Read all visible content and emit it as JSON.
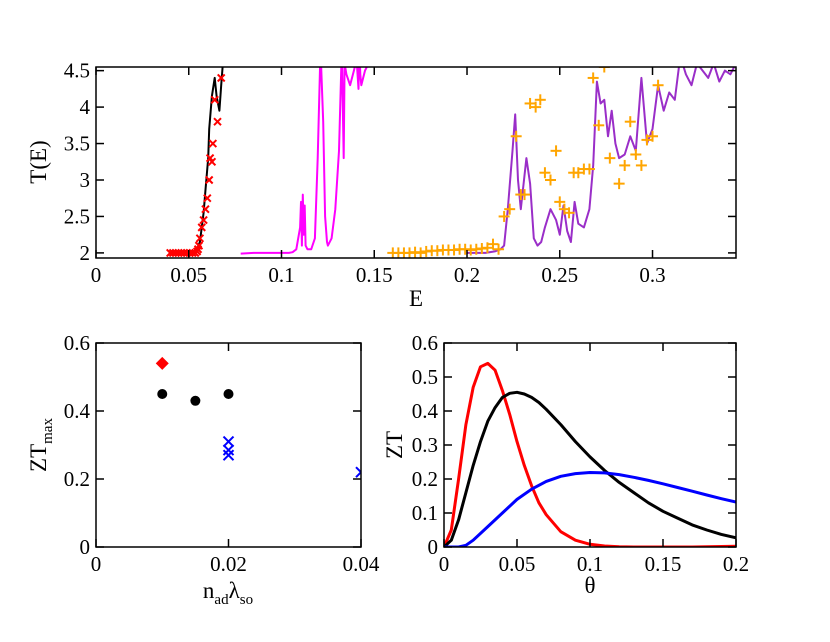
{
  "chart_data": [
    {
      "id": "top",
      "type": "line",
      "xlabel": "E",
      "ylabel": "T(E)",
      "xlim": [
        0,
        0.345
      ],
      "ylim": [
        1.93,
        4.55
      ],
      "xticks": [
        0,
        0.05,
        0.1,
        0.15,
        0.2,
        0.25,
        0.3
      ],
      "xtick_labels": [
        "0",
        "0.05",
        "0.1",
        "0.15",
        "0.2",
        "0.25",
        "0.3"
      ],
      "yticks": [
        2,
        2.5,
        3,
        3.5,
        4,
        4.5
      ],
      "ytick_labels": [
        "2",
        "2.5",
        "3",
        "3.5",
        "4",
        "4.5"
      ],
      "series": [
        {
          "kind": "line",
          "color": "#000000",
          "x": [
            0.052,
            0.054,
            0.056,
            0.058,
            0.059,
            0.0605,
            0.061,
            0.0625,
            0.064,
            0.065,
            0.0665,
            0.0675,
            0.069
          ],
          "y": [
            2.0,
            2.03,
            2.15,
            2.55,
            2.85,
            3.3,
            3.7,
            4.15,
            4.4,
            4.15,
            3.95,
            4.3,
            4.8
          ]
        },
        {
          "kind": "line",
          "color": "#ff00ff",
          "x": [
            0.078,
            0.085,
            0.095,
            0.104,
            0.106,
            0.108,
            0.11,
            0.1105,
            0.111,
            0.1115,
            0.112,
            0.1125,
            0.113,
            0.114,
            0.116,
            0.118,
            0.1195,
            0.121,
            0.1225,
            0.1235,
            0.1245,
            0.125,
            0.127,
            0.129,
            0.131,
            0.1325,
            0.1335,
            0.134,
            0.135,
            0.137,
            0.139,
            0.1405,
            0.1415,
            0.142,
            0.1425,
            0.143,
            0.145,
            0.147,
            0.149
          ],
          "y": [
            1.99,
            2.0,
            2.0,
            2.0,
            2.01,
            2.05,
            2.35,
            2.7,
            2.1,
            2.8,
            2.25,
            2.65,
            2.1,
            2.05,
            2.05,
            2.2,
            3.3,
            4.8,
            3.8,
            2.5,
            2.15,
            2.1,
            2.2,
            2.6,
            3.4,
            4.8,
            3.3,
            4.6,
            4.45,
            4.3,
            4.5,
            4.65,
            4.25,
            4.8,
            4.45,
            4.3,
            4.5,
            4.6,
            4.8
          ]
        },
        {
          "kind": "line",
          "color": "#9a2ec8",
          "x": [
            0.2,
            0.205,
            0.21,
            0.215,
            0.218,
            0.22,
            0.222,
            0.2245,
            0.226,
            0.2275,
            0.229,
            0.232,
            0.234,
            0.236,
            0.238,
            0.24,
            0.242,
            0.245,
            0.248,
            0.25,
            0.252,
            0.254,
            0.256,
            0.258,
            0.26,
            0.263,
            0.266,
            0.268,
            0.27,
            0.272,
            0.274,
            0.276,
            0.278,
            0.28,
            0.282,
            0.285,
            0.288,
            0.291,
            0.294,
            0.297,
            0.3,
            0.303,
            0.306,
            0.309,
            0.312,
            0.315,
            0.318,
            0.321,
            0.324,
            0.327,
            0.33,
            0.333,
            0.336,
            0.339,
            0.342,
            0.345
          ],
          "y": [
            2.0,
            2.0,
            2.0,
            2.02,
            2.05,
            2.1,
            2.6,
            3.4,
            3.9,
            3.0,
            2.6,
            3.3,
            2.95,
            2.2,
            2.1,
            2.15,
            2.35,
            2.6,
            2.45,
            2.25,
            2.65,
            2.3,
            2.15,
            2.7,
            2.4,
            2.35,
            2.6,
            3.2,
            4.35,
            4.05,
            4.1,
            3.6,
            3.95,
            3.5,
            3.3,
            3.35,
            3.6,
            3.4,
            4.4,
            3.5,
            3.7,
            4.3,
            3.95,
            4.2,
            4.1,
            4.7,
            4.45,
            4.3,
            4.6,
            4.5,
            4.4,
            4.6,
            4.35,
            4.5,
            4.45,
            4.6
          ]
        },
        {
          "kind": "x",
          "color": "#ff0000",
          "x": [
            0.04,
            0.0415,
            0.043,
            0.0445,
            0.046,
            0.0475,
            0.049,
            0.0505,
            0.052,
            0.0535,
            0.0545,
            0.055,
            0.0555,
            0.056,
            0.057,
            0.058,
            0.059,
            0.06,
            0.061,
            0.0615,
            0.0625,
            0.063,
            0.064,
            0.0655,
            0.0675
          ],
          "y": [
            2.0,
            2.0,
            2.0,
            2.0,
            2.0,
            2.0,
            2.0,
            2.0,
            2.0,
            2.0,
            2.02,
            2.05,
            2.1,
            2.2,
            2.35,
            2.45,
            2.6,
            2.75,
            3.0,
            3.3,
            3.25,
            3.5,
            4.1,
            3.8,
            4.4
          ]
        },
        {
          "kind": "plus",
          "color": "#ffa500",
          "x": [
            0.16,
            0.163,
            0.166,
            0.169,
            0.172,
            0.175,
            0.178,
            0.181,
            0.184,
            0.187,
            0.19,
            0.193,
            0.196,
            0.199,
            0.202,
            0.205,
            0.208,
            0.211,
            0.214,
            0.217,
            0.22,
            0.223,
            0.2265,
            0.229,
            0.231,
            0.234,
            0.237,
            0.2395,
            0.242,
            0.245,
            0.248,
            0.25,
            0.2525,
            0.255,
            0.2575,
            0.26,
            0.263,
            0.266,
            0.268,
            0.271,
            0.274,
            0.277,
            0.279,
            0.282,
            0.285,
            0.288,
            0.291,
            0.294,
            0.297,
            0.3,
            0.303
          ],
          "y": [
            2.0,
            2.0,
            2.0,
            2.0,
            2.01,
            2.0,
            2.02,
            2.03,
            2.03,
            2.04,
            2.04,
            2.04,
            2.05,
            2.05,
            2.04,
            2.05,
            2.06,
            2.07,
            2.12,
            2.05,
            2.5,
            2.6,
            3.6,
            2.8,
            2.8,
            4.05,
            4.0,
            4.1,
            3.1,
            3.0,
            3.4,
            2.7,
            2.6,
            2.55,
            3.1,
            3.1,
            3.15,
            3.15,
            4.4,
            3.75,
            4.55,
            3.3,
            4.65,
            2.95,
            3.2,
            3.8,
            3.35,
            3.2,
            3.55,
            3.6,
            4.3
          ]
        }
      ]
    },
    {
      "id": "bottom-left",
      "type": "scatter",
      "xlabel": "n",
      "xlabel_sub": "ad",
      "xlabel_greek": "λ",
      "xlabel_greek_sub": "so",
      "ylabel": "ZT",
      "ylabel_sub": "max",
      "xlim": [
        0,
        0.04
      ],
      "ylim": [
        0,
        0.6
      ],
      "xticks": [
        0,
        0.02,
        0.04
      ],
      "xtick_labels": [
        "0",
        "0.02",
        "0.04"
      ],
      "yticks": [
        0,
        0.2,
        0.4,
        0.6
      ],
      "ytick_labels": [
        "0",
        "0.2",
        "0.4",
        "0.6"
      ],
      "series": [
        {
          "kind": "diamond",
          "color": "#ff0000",
          "x": [
            0.01
          ],
          "y": [
            0.54
          ]
        },
        {
          "kind": "circle",
          "color": "#000000",
          "x": [
            0.01,
            0.015,
            0.02
          ],
          "y": [
            0.45,
            0.43,
            0.45
          ]
        },
        {
          "kind": "x",
          "color": "#0000ff",
          "x": [
            0.02,
            0.02,
            0.02,
            0.04
          ],
          "y": [
            0.31,
            0.285,
            0.27,
            0.22
          ]
        }
      ]
    },
    {
      "id": "bottom-right",
      "type": "line",
      "xlabel": "θ",
      "ylabel": "ZT",
      "xlim": [
        0,
        0.2
      ],
      "ylim": [
        0,
        0.6
      ],
      "xticks": [
        0,
        0.05,
        0.1,
        0.15,
        0.2
      ],
      "xtick_labels": [
        "0",
        "0.05",
        "0.1",
        "0.15",
        "0.2"
      ],
      "yticks": [
        0,
        0.1,
        0.2,
        0.3,
        0.4,
        0.5,
        0.6
      ],
      "ytick_labels": [
        "0",
        "0.1",
        "0.2",
        "0.3",
        "0.4",
        "0.5",
        "0.6"
      ],
      "series": [
        {
          "kind": "line",
          "color": "#ff0000",
          "x": [
            0,
            0.005,
            0.01,
            0.015,
            0.02,
            0.025,
            0.03,
            0.035,
            0.04,
            0.045,
            0.05,
            0.055,
            0.06,
            0.065,
            0.07,
            0.08,
            0.09,
            0.1,
            0.11,
            0.12,
            0.13,
            0.14,
            0.15,
            0.17,
            0.2
          ],
          "y": [
            0,
            0.05,
            0.2,
            0.36,
            0.47,
            0.53,
            0.54,
            0.52,
            0.46,
            0.39,
            0.31,
            0.24,
            0.18,
            0.13,
            0.095,
            0.045,
            0.02,
            0.008,
            0.003,
            0.001,
            0.0,
            0.0,
            0.0,
            0.0,
            0.002
          ]
        },
        {
          "kind": "line",
          "color": "#000000",
          "x": [
            0,
            0.005,
            0.01,
            0.015,
            0.02,
            0.025,
            0.03,
            0.035,
            0.04,
            0.045,
            0.05,
            0.055,
            0.06,
            0.065,
            0.07,
            0.08,
            0.09,
            0.1,
            0.11,
            0.12,
            0.13,
            0.14,
            0.15,
            0.16,
            0.17,
            0.18,
            0.19,
            0.2
          ],
          "y": [
            0,
            0.02,
            0.08,
            0.16,
            0.24,
            0.31,
            0.37,
            0.41,
            0.44,
            0.452,
            0.455,
            0.45,
            0.44,
            0.425,
            0.405,
            0.36,
            0.31,
            0.265,
            0.225,
            0.19,
            0.16,
            0.13,
            0.105,
            0.085,
            0.065,
            0.05,
            0.037,
            0.027
          ]
        },
        {
          "kind": "line",
          "color": "#0000ff",
          "x": [
            0,
            0.01,
            0.015,
            0.02,
            0.03,
            0.04,
            0.05,
            0.06,
            0.07,
            0.08,
            0.09,
            0.1,
            0.11,
            0.12,
            0.13,
            0.14,
            0.15,
            0.16,
            0.17,
            0.18,
            0.19,
            0.2
          ],
          "y": [
            0,
            0.0,
            0.005,
            0.02,
            0.06,
            0.1,
            0.14,
            0.17,
            0.193,
            0.208,
            0.216,
            0.219,
            0.218,
            0.213,
            0.205,
            0.196,
            0.186,
            0.175,
            0.164,
            0.153,
            0.142,
            0.132
          ]
        }
      ]
    }
  ]
}
